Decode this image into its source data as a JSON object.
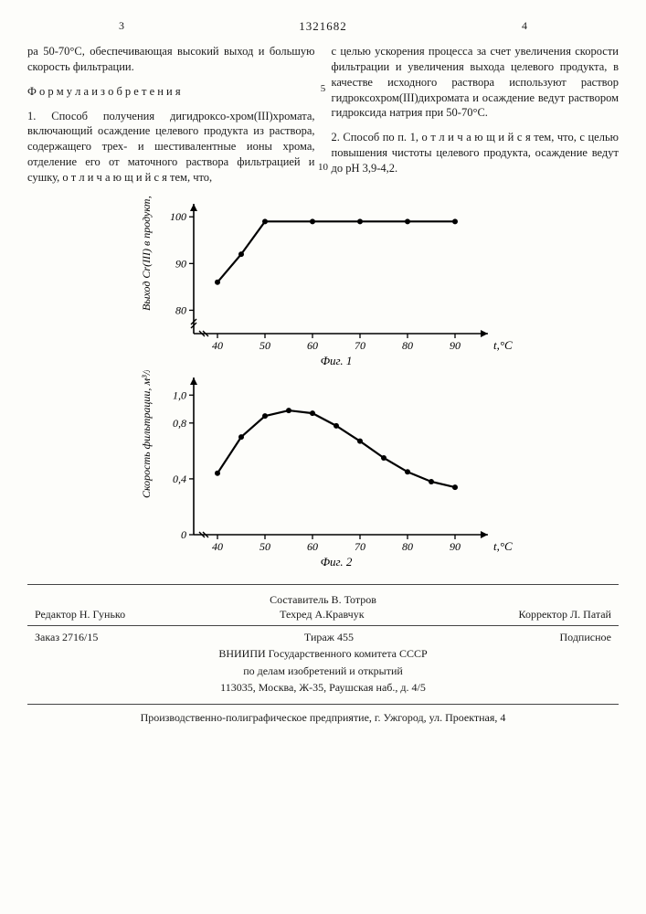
{
  "header": {
    "left_col_num": "3",
    "right_col_num": "4",
    "patent_number": "1321682"
  },
  "leftColumn": {
    "p1": "ра 50-70°С, обеспечивающая высокий выход и большую скорость фильтрации.",
    "formula_title": "Ф о р м у л а  и з о б р е т е н и я",
    "p2": "1. Способ получения дигидроксо-хром(III)хромата, включающий осаждение целевого продукта из раствора, содержащего трех- и шестивалентные ионы хрома, отделение его от маточного раствора фильтрацией и сушку, о т л и ч а ю щ и й с я  тем, что,"
  },
  "rightColumn": {
    "p1": "с целью ускорения процесса за счет увеличения скорости фильтрации и увеличения выхода целевого продукта, в качестве исходного раствора используют раствор гидроксохром(III)дихромата и осаждение ведут раствором гидроксида натрия при 50-70°С.",
    "p2": "2. Способ по п. 1, о т л и ч а ю щ и й с я  тем, что, с целью повышения чистоты целевого продукта, осаждение ведут до pH 3,9-4,2."
  },
  "lineNumbers": {
    "five": "5",
    "ten": "10"
  },
  "chart1": {
    "ylabel": "Выход Cr(III) в продукт, %",
    "xlabel": "t,°C",
    "caption": "Фиг. 1",
    "xTicks": [
      "40",
      "50",
      "60",
      "70",
      "80",
      "90"
    ],
    "yTicks": [
      "80",
      "90",
      "100"
    ],
    "points": [
      {
        "x": 40,
        "y": 86
      },
      {
        "x": 45,
        "y": 92
      },
      {
        "x": 50,
        "y": 99
      },
      {
        "x": 60,
        "y": 99
      },
      {
        "x": 70,
        "y": 99
      },
      {
        "x": 80,
        "y": 99
      },
      {
        "x": 90,
        "y": 99
      }
    ],
    "xlim": [
      35,
      95
    ],
    "ylim": [
      75,
      102
    ],
    "line_color": "#000",
    "marker_color": "#000",
    "bg": "#fdfdfa",
    "line_width": 2.2,
    "marker_r": 3
  },
  "chart2": {
    "ylabel": "Скорость фильтрации, м³/м²·ч",
    "xlabel": "t,°C",
    "caption": "Фиг. 2",
    "xTicks": [
      "40",
      "50",
      "60",
      "70",
      "80",
      "90"
    ],
    "yTicks": [
      "0",
      "0,4",
      "0,8",
      "1,0"
    ],
    "yTickVals": [
      0,
      0.4,
      0.8,
      1.0
    ],
    "points": [
      {
        "x": 40,
        "y": 0.44
      },
      {
        "x": 45,
        "y": 0.7
      },
      {
        "x": 50,
        "y": 0.85
      },
      {
        "x": 55,
        "y": 0.89
      },
      {
        "x": 60,
        "y": 0.87
      },
      {
        "x": 65,
        "y": 0.78
      },
      {
        "x": 70,
        "y": 0.67
      },
      {
        "x": 75,
        "y": 0.55
      },
      {
        "x": 80,
        "y": 0.45
      },
      {
        "x": 85,
        "y": 0.38
      },
      {
        "x": 90,
        "y": 0.34
      }
    ],
    "xlim": [
      35,
      95
    ],
    "ylim": [
      0,
      1.1
    ],
    "line_color": "#000",
    "marker_color": "#000",
    "bg": "#fdfdfa",
    "line_width": 2.2,
    "marker_r": 3
  },
  "footer": {
    "compiler": "Составитель В. Тотров",
    "editor": "Редактор Н. Гунько",
    "techred": "Техред А.Кравчук",
    "corrector": "Корректор Л. Патай",
    "order": "Заказ 2716/15",
    "tirazh": "Тираж 455",
    "podpisnoe": "Подписное",
    "org1": "ВНИИПИ Государственного комитета СССР",
    "org2": "по делам изобретений и открытий",
    "address": "113035, Москва, Ж-35, Раушская наб., д. 4/5",
    "printer": "Производственно-полиграфическое предприятие, г. Ужгород, ул. Проектная, 4"
  }
}
